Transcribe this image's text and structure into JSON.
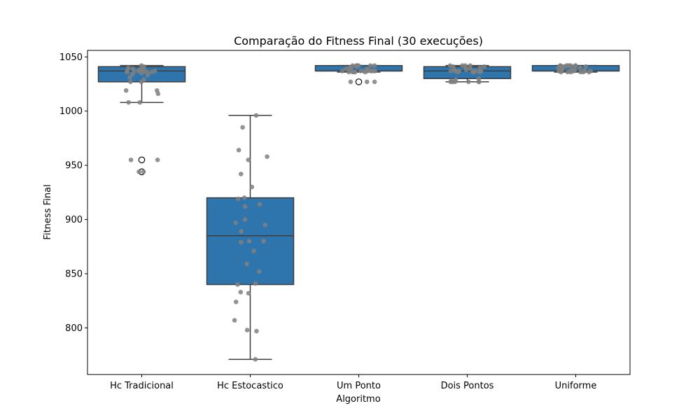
{
  "chart_data": {
    "type": "box",
    "title": "Comparação do Fitness Final (30 execuções)",
    "xlabel": "Algoritmo",
    "ylabel": "Fitness Final",
    "ylim": [
      757,
      1056
    ],
    "yticks": [
      800,
      850,
      900,
      950,
      1000,
      1050
    ],
    "grid": false,
    "legend": "none",
    "colors": {
      "box": "#2e75ad",
      "line": "#3d3d3d",
      "point": "#808080",
      "outlier": "#000000"
    },
    "categories": [
      "Hc Tradicional",
      "Hc Estocastico",
      "Um Ponto",
      "Dois Pontos",
      "Uniforme"
    ],
    "boxes": [
      {
        "name": "Hc Tradicional",
        "whisker_low": 1008,
        "q1": 1027,
        "median": 1037,
        "q3": 1041,
        "whisker_high": 1042,
        "outliers": [
          955,
          944
        ],
        "points": [
          1042,
          1041,
          1040,
          1039,
          1038,
          1038,
          1037,
          1037,
          1037,
          1037,
          1037,
          1036,
          1036,
          1036,
          1035,
          1034,
          1033,
          1031,
          1029,
          1027,
          1027,
          1019,
          1019,
          1016,
          1008,
          1008,
          955,
          955,
          944,
          944
        ]
      },
      {
        "name": "Hc Estocastico",
        "whisker_low": 771,
        "q1": 840,
        "median": 885,
        "q3": 920,
        "whisker_high": 996,
        "outliers": [],
        "points": [
          996,
          985,
          964,
          958,
          955,
          942,
          930,
          920,
          919,
          914,
          912,
          900,
          897,
          895,
          889,
          880,
          880,
          879,
          871,
          859,
          852,
          841,
          840,
          833,
          832,
          824,
          807,
          798,
          797,
          771
        ]
      },
      {
        "name": "Um Ponto",
        "whisker_low": 1036,
        "q1": 1037,
        "median": 1037,
        "q3": 1042,
        "whisker_high": 1042,
        "outliers": [
          1027
        ],
        "points": [
          1042,
          1042,
          1042,
          1042,
          1042,
          1042,
          1042,
          1041,
          1040,
          1040,
          1039,
          1039,
          1038,
          1038,
          1037,
          1037,
          1037,
          1037,
          1037,
          1037,
          1037,
          1037,
          1036,
          1036,
          1036,
          1036,
          1036,
          1027,
          1027,
          1027
        ]
      },
      {
        "name": "Dois Pontos",
        "whisker_low": 1027,
        "q1": 1030,
        "median": 1037,
        "q3": 1041,
        "whisker_high": 1042,
        "outliers": [],
        "points": [
          1042,
          1042,
          1042,
          1042,
          1041,
          1041,
          1040,
          1040,
          1039,
          1038,
          1038,
          1037,
          1037,
          1037,
          1037,
          1037,
          1037,
          1036,
          1036,
          1036,
          1036,
          1030,
          1029,
          1028,
          1027,
          1027,
          1027,
          1027,
          1027,
          1027
        ]
      },
      {
        "name": "Uniforme",
        "whisker_low": 1036,
        "q1": 1037,
        "median": 1037,
        "q3": 1042,
        "whisker_high": 1042,
        "outliers": [],
        "points": [
          1042,
          1042,
          1042,
          1042,
          1042,
          1042,
          1042,
          1042,
          1041,
          1041,
          1041,
          1040,
          1040,
          1039,
          1039,
          1038,
          1038,
          1037,
          1037,
          1037,
          1037,
          1037,
          1037,
          1037,
          1036,
          1036,
          1036,
          1036,
          1036,
          1036
        ]
      }
    ]
  }
}
